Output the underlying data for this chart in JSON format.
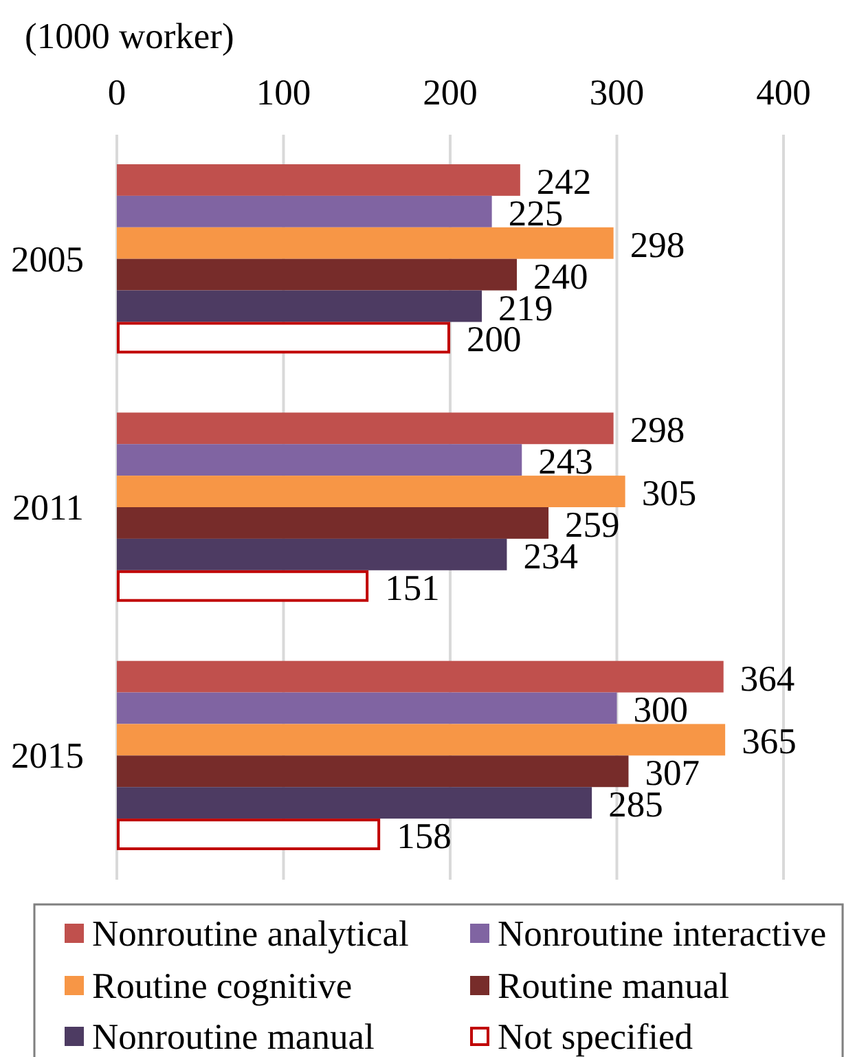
{
  "chart_data": {
    "type": "bar",
    "orientation": "horizontal",
    "xlabel": "(1000 worker)",
    "categories": [
      "2005",
      "2011",
      "2015"
    ],
    "series": [
      {
        "name": "Nonroutine analytical",
        "color": "#c0504d",
        "values": [
          242,
          298,
          364
        ]
      },
      {
        "name": "Nonroutine interactive",
        "color": "#8064a2",
        "values": [
          225,
          243,
          300
        ]
      },
      {
        "name": "Routine cognitive",
        "color": "#f79646",
        "values": [
          298,
          305,
          365
        ]
      },
      {
        "name": "Routine manual",
        "color": "#772c2a",
        "values": [
          240,
          259,
          307
        ]
      },
      {
        "name": "Nonroutine manual",
        "color": "#4d3b62",
        "values": [
          219,
          234,
          285
        ]
      },
      {
        "name": "Not specified",
        "color": "#ffffff",
        "values": [
          200,
          151,
          158
        ]
      }
    ],
    "xlim": [
      0,
      400
    ],
    "xticks": [
      0,
      100,
      200,
      300,
      400
    ],
    "grid": "x",
    "legend": "bottom",
    "data_labels": true
  }
}
